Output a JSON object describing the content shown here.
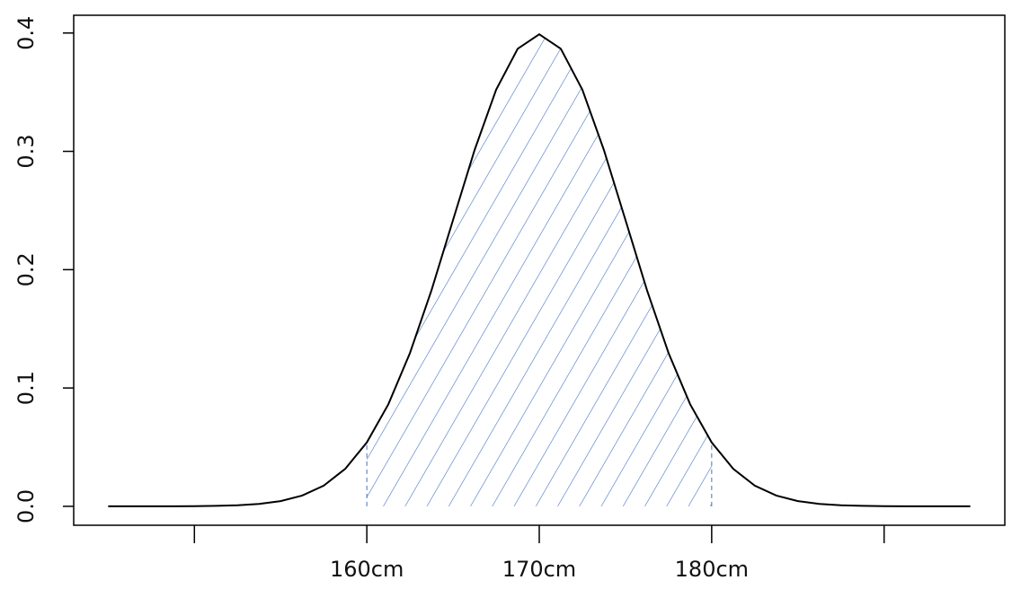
{
  "chart_data": {
    "type": "line",
    "x": [
      -5,
      -4.75,
      -4.5,
      -4.25,
      -4,
      -3.75,
      -3.5,
      -3.25,
      -3,
      -2.75,
      -2.5,
      -2.25,
      -2,
      -1.75,
      -1.5,
      -1.25,
      -1,
      -0.75,
      -0.5,
      -0.25,
      0,
      0.25,
      0.5,
      0.75,
      1,
      1.25,
      1.5,
      1.75,
      2,
      2.25,
      2.5,
      2.75,
      3,
      3.25,
      3.5,
      3.75,
      4,
      4.25,
      4.5,
      4.75,
      5
    ],
    "values": [
      0,
      0,
      0,
      0,
      0.0001,
      0.0004,
      0.0009,
      0.002,
      0.0044,
      0.0091,
      0.0175,
      0.0317,
      0.054,
      0.0863,
      0.1295,
      0.1826,
      0.242,
      0.3011,
      0.3521,
      0.3867,
      0.3989,
      0.3867,
      0.3521,
      0.3011,
      0.242,
      0.1826,
      0.1295,
      0.0863,
      0.054,
      0.0317,
      0.0175,
      0.0091,
      0.0044,
      0.002,
      0.0009,
      0.0004,
      0.0001,
      0,
      0,
      0,
      0
    ],
    "color": "#000000",
    "shade": {
      "from": -2,
      "to": 2,
      "color": "#4472c4"
    },
    "xlim": [
      -5.4,
      5.4
    ],
    "ylim": [
      -0.016,
      0.415
    ],
    "xticks": [
      {
        "value": -4,
        "label": null
      },
      {
        "value": -2,
        "label": "160cm"
      },
      {
        "value": 0,
        "label": "170cm"
      },
      {
        "value": 2,
        "label": "180cm"
      },
      {
        "value": 4,
        "label": null
      }
    ],
    "yticks": [
      {
        "value": 0,
        "label": "0.0"
      },
      0.1,
      0.2,
      0.3,
      0.4
    ]
  }
}
